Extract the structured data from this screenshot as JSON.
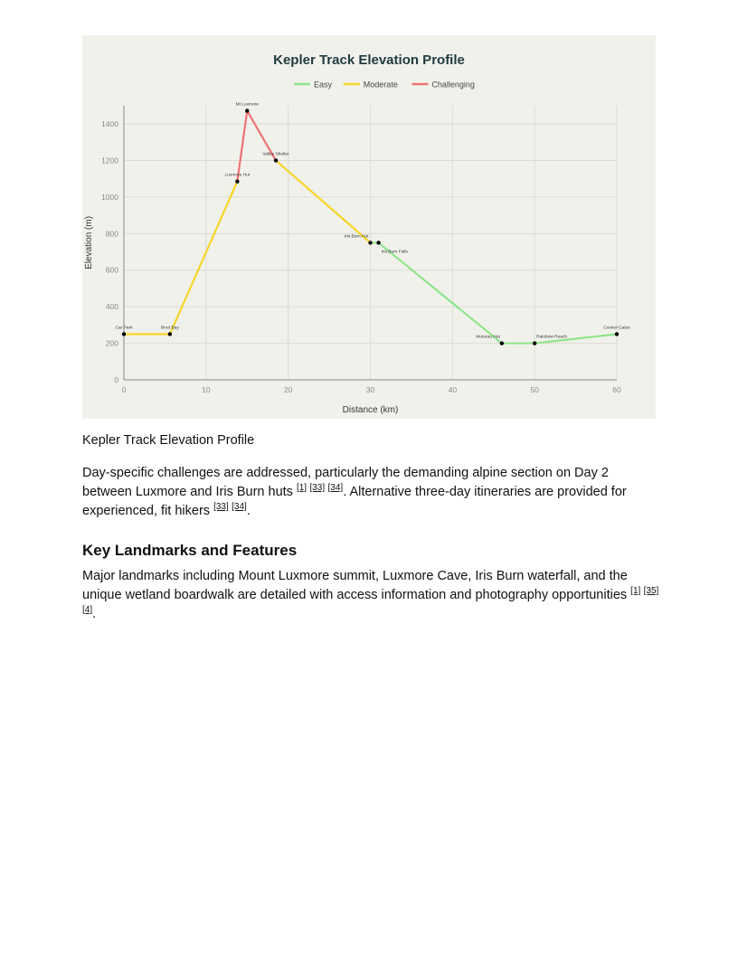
{
  "chart_data": {
    "type": "line",
    "title": "Kepler Track Elevation Profile",
    "xlabel": "Distance (km)",
    "ylabel": "Elevation (m)",
    "xlim": [
      0,
      60
    ],
    "ylim": [
      0,
      1500
    ],
    "xticks": [
      0,
      10,
      20,
      30,
      40,
      50,
      60
    ],
    "yticks": [
      0,
      200,
      400,
      600,
      800,
      1000,
      1200,
      1400
    ],
    "grid": true,
    "legend_position": "top",
    "legend": [
      {
        "name": "Easy",
        "color": "#90e68a"
      },
      {
        "name": "Moderate",
        "color": "#f6d629"
      },
      {
        "name": "Challenging",
        "color": "#ef7373"
      }
    ],
    "points": [
      {
        "label": "Car Park",
        "x": 0,
        "y": 250
      },
      {
        "label": "Brod Bay",
        "x": 5.6,
        "y": 250
      },
      {
        "label": "Luxmore Hut",
        "x": 13.8,
        "y": 1085
      },
      {
        "label": "Mt Luxmore",
        "x": 15,
        "y": 1472
      },
      {
        "label": "Valley Shelter",
        "x": 18.5,
        "y": 1200
      },
      {
        "label": "Iris Burn Hut",
        "x": 30,
        "y": 750
      },
      {
        "label": "Iris Burn Falls",
        "x": 31,
        "y": 750
      },
      {
        "label": "Moturau Hut",
        "x": 46,
        "y": 200
      },
      {
        "label": "Rainbow Reach",
        "x": 50,
        "y": 200
      },
      {
        "label": "Control Gates",
        "x": 60,
        "y": 250
      }
    ],
    "segment_difficulty": [
      "Moderate",
      "Moderate",
      "Challenging",
      "Challenging",
      "Moderate",
      "Easy",
      "Easy",
      "Easy",
      "Easy"
    ]
  },
  "caption": "Kepler Track Elevation Profile",
  "paragraph1": {
    "text_a": "Day-specific challenges are addressed, particularly the demanding alpine section on Day 2 between Luxmore and Iris Burn huts ",
    "cites_a": [
      "[1]",
      "[33]",
      "[34]"
    ],
    "text_b": ". Alternative three-day itineraries are provided for experienced, fit hikers ",
    "cites_b": [
      "[33]",
      "[34]"
    ],
    "text_c": "."
  },
  "heading": "Key Landmarks and Features",
  "paragraph2": {
    "text_a": "Major landmarks including Mount Luxmore summit, Luxmore Cave, Iris Burn waterfall, and the unique wetland boardwalk are detailed with access information and photography opportunities ",
    "cites_a": [
      "[1]",
      "[35]",
      "[4]"
    ],
    "text_b": "."
  }
}
